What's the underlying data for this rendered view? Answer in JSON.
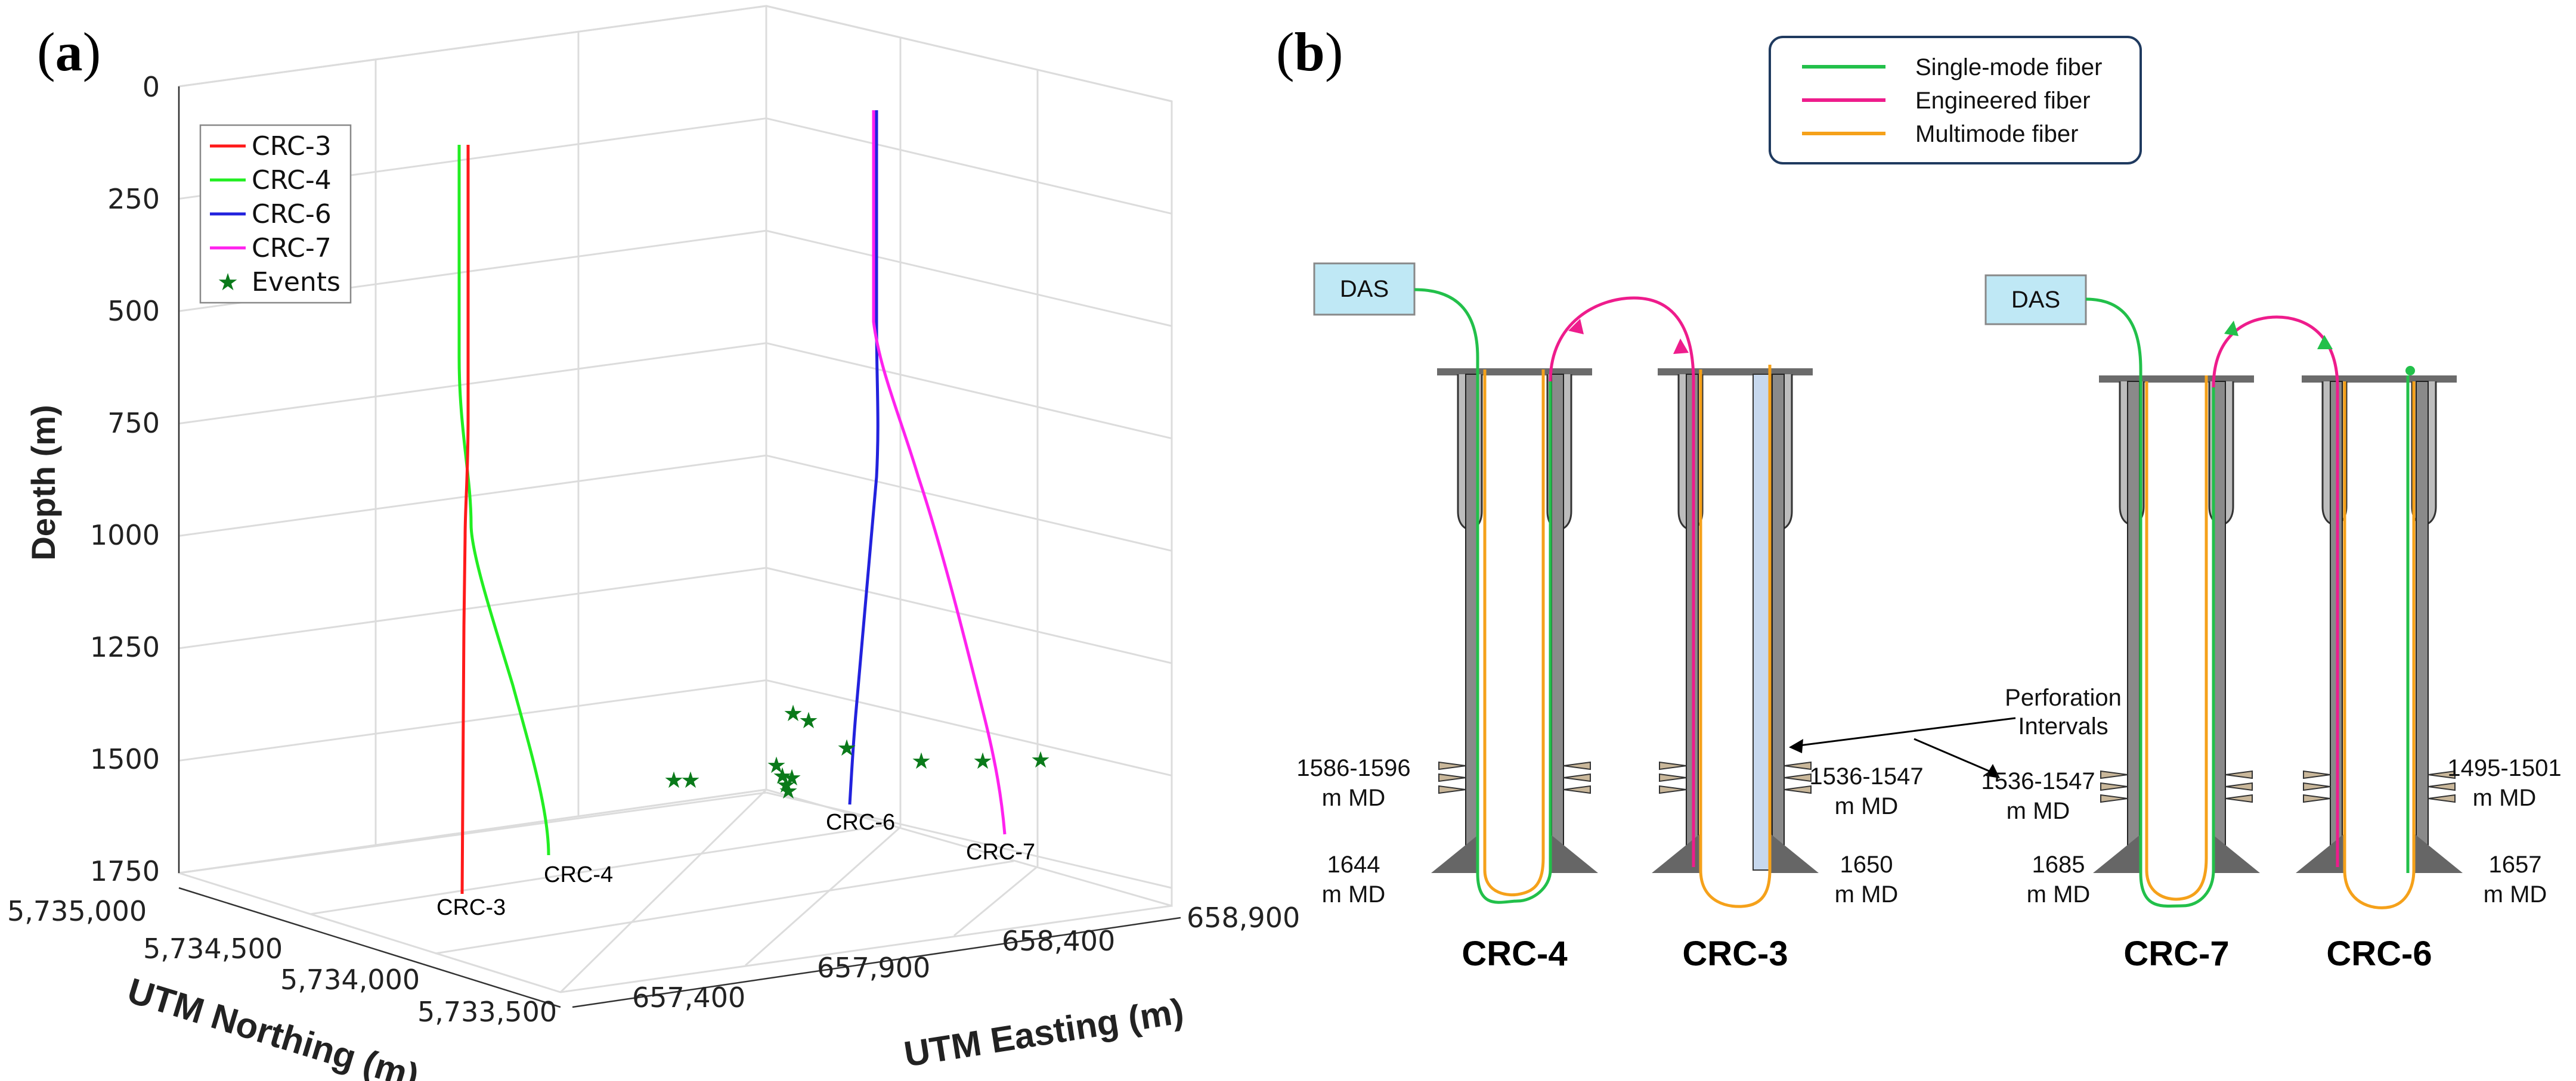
{
  "panel_a": {
    "label_open": "(",
    "label_letter": "a",
    "label_close": ")"
  },
  "panel_b": {
    "label_open": "(",
    "label_letter": "b",
    "label_close": ")",
    "legend": [
      {
        "label": "Single-mode fiber",
        "color": "#22c04a"
      },
      {
        "label": "Engineered fiber",
        "color": "#ee1c8c"
      },
      {
        "label": "Multimode fiber",
        "color": "#f5a11a"
      }
    ],
    "das_label": "DAS",
    "perforation_label_line1": "Perforation",
    "perforation_label_line2": "Intervals",
    "wells": [
      {
        "name": "CRC-4",
        "perf_line1": "1586-1596",
        "perf_line2": "m MD",
        "td_line1": "1644",
        "td_line2": "m MD"
      },
      {
        "name": "CRC-3",
        "perf_line1": "1536-1547",
        "perf_line2": "m MD",
        "td_line1": "1650",
        "td_line2": "m MD"
      },
      {
        "name": "CRC-7",
        "perf_line1": "1536-1547",
        "perf_line2": "m MD",
        "td_line1": "1685",
        "td_line2": "m MD"
      },
      {
        "name": "CRC-6",
        "perf_line1": "1495-1501",
        "perf_line2": "m MD",
        "td_line1": "1657",
        "td_line2": "m MD"
      }
    ]
  },
  "chart_data": {
    "type": "line",
    "title": "",
    "zlabel": "Depth (m)",
    "xlabel": "UTM Northing (m)",
    "ylabel": "UTM Easting (m)",
    "z_ticks": [
      "0",
      "250",
      "500",
      "750",
      "1000",
      "1250",
      "1500",
      "1750"
    ],
    "z_range": [
      0,
      1750
    ],
    "northing_ticks": [
      "5,735,000",
      "5,734,500",
      "5,734,000",
      "5,733,500"
    ],
    "easting_ticks": [
      "657,400",
      "657,900",
      "658,400",
      "658,900"
    ],
    "legend": [
      {
        "label": "CRC-3",
        "color": "#ff1a1a",
        "kind": "line"
      },
      {
        "label": "CRC-4",
        "color": "#22ee22",
        "kind": "line"
      },
      {
        "label": "CRC-6",
        "color": "#2222dd",
        "kind": "line"
      },
      {
        "label": "CRC-7",
        "color": "#ff22ee",
        "kind": "line"
      },
      {
        "label": "Events",
        "color": "#0a7a1a",
        "kind": "star"
      }
    ],
    "series": [
      {
        "name": "CRC-3",
        "color": "#ff1a1a",
        "depth": [
          140,
          500,
          900,
          1200,
          1500,
          1800
        ]
      },
      {
        "name": "CRC-4",
        "color": "#22ee22",
        "depth": [
          140,
          400,
          700,
          900,
          1100,
          1300,
          1500,
          1700
        ]
      },
      {
        "name": "CRC-6",
        "color": "#2222dd",
        "depth": [
          50,
          400,
          600,
          900,
          1200,
          1500,
          1600
        ]
      },
      {
        "name": "CRC-7",
        "color": "#ff22ee",
        "depth": [
          50,
          400,
          600,
          900,
          1200,
          1500,
          1700
        ]
      }
    ],
    "well_labels": [
      "CRC-3",
      "CRC-4",
      "CRC-6",
      "CRC-7"
    ],
    "events_count": 13
  }
}
